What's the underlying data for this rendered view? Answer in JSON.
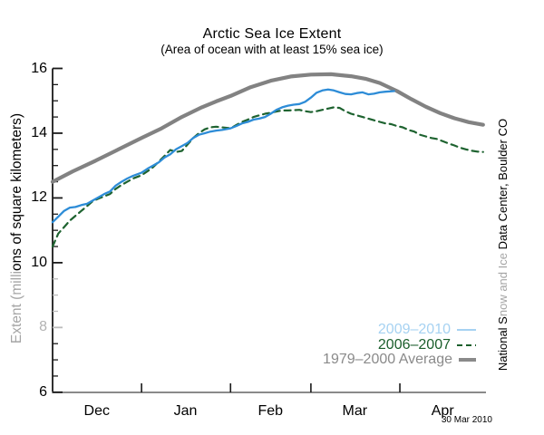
{
  "header": {
    "title": "Arctic Sea Ice Extent",
    "subtitle": "(Area of ocean with at least 15% sea ice)"
  },
  "y_axis_label": {
    "part_faded": "Extent (milli",
    "part_main": "ons of square kilometers)"
  },
  "credit": {
    "part1": "National S",
    "part2": "now and Ice ",
    "part3": "Data Center, Boulder CO"
  },
  "footer": {
    "date_stamp": "30 Mar 2010"
  },
  "legend": {
    "items": [
      {
        "label": "2009–2010",
        "text_color": "#a6d2f2",
        "sample_color": "#a6d2f2",
        "sample_style": "thin"
      },
      {
        "label": "2006–2007",
        "text_color": "#1a5e2b",
        "sample_color": "#1a5e2b",
        "sample_style": "dashed"
      },
      {
        "label": "1979–2000 Average",
        "text_color": "#8a8a8a",
        "sample_color": "#8a8a8a",
        "sample_style": "thick"
      }
    ]
  },
  "chart_data": {
    "type": "line",
    "title": "Arctic Sea Ice Extent",
    "subtitle": "(Area of ocean with at least 15% sea ice)",
    "ylabel": "Extent (millions of square kilometers)",
    "ylim": [
      6,
      16
    ],
    "y_major_ticks": [
      6,
      8,
      10,
      12,
      14,
      16
    ],
    "y_minor_step": 0.5,
    "faded_y_ticks": [
      8,
      8.5,
      9,
      9.5
    ],
    "axis_color": "#1a1a1a",
    "grid": "off",
    "legend_position": "lower right",
    "x_axis": {
      "unit": "days from Dec 1",
      "color": "#8a8a8a",
      "months": [
        {
          "label": "Dec",
          "center_day": 15.4
        },
        {
          "label": "Jan",
          "center_day": 46.3
        },
        {
          "label": "Feb",
          "center_day": 75.9
        },
        {
          "label": "Mar",
          "center_day": 105.3
        },
        {
          "label": "Apr",
          "center_day": 135.9
        }
      ],
      "month_start_days": [
        31,
        62,
        90,
        121
      ]
    },
    "series": [
      {
        "name": "1979-2000 Average",
        "color": "#828282",
        "style": "solid",
        "width": 4.2,
        "points": [
          [
            0,
            12.5
          ],
          [
            7,
            12.82
          ],
          [
            15,
            13.15
          ],
          [
            23,
            13.5
          ],
          [
            31,
            13.85
          ],
          [
            38,
            14.15
          ],
          [
            45,
            14.5
          ],
          [
            52,
            14.8
          ],
          [
            57,
            14.98
          ],
          [
            62,
            15.15
          ],
          [
            69,
            15.42
          ],
          [
            76,
            15.62
          ],
          [
            83,
            15.75
          ],
          [
            90,
            15.81
          ],
          [
            97,
            15.82
          ],
          [
            104,
            15.76
          ],
          [
            109,
            15.68
          ],
          [
            114,
            15.55
          ],
          [
            120,
            15.3
          ],
          [
            125,
            15.05
          ],
          [
            130,
            14.82
          ],
          [
            135,
            14.62
          ],
          [
            140,
            14.46
          ],
          [
            145,
            14.34
          ],
          [
            150,
            14.26
          ]
        ]
      },
      {
        "name": "2006-2007",
        "color": "#1e6330",
        "style": "dashed",
        "width": 2.2,
        "points": [
          [
            0,
            10.5
          ],
          [
            2,
            10.9
          ],
          [
            4,
            11.1
          ],
          [
            6,
            11.3
          ],
          [
            8,
            11.45
          ],
          [
            10,
            11.6
          ],
          [
            12,
            11.75
          ],
          [
            14,
            11.9
          ],
          [
            16,
            11.98
          ],
          [
            18,
            12.05
          ],
          [
            20,
            12.12
          ],
          [
            22,
            12.28
          ],
          [
            24,
            12.4
          ],
          [
            26,
            12.5
          ],
          [
            28,
            12.6
          ],
          [
            31,
            12.7
          ],
          [
            33,
            12.82
          ],
          [
            35,
            12.95
          ],
          [
            37,
            13.12
          ],
          [
            39,
            13.3
          ],
          [
            41,
            13.48
          ],
          [
            43,
            13.42
          ],
          [
            45,
            13.45
          ],
          [
            47,
            13.65
          ],
          [
            49,
            13.85
          ],
          [
            51,
            14.0
          ],
          [
            53,
            14.12
          ],
          [
            55,
            14.18
          ],
          [
            57,
            14.2
          ],
          [
            59,
            14.18
          ],
          [
            62,
            14.15
          ],
          [
            64,
            14.25
          ],
          [
            66,
            14.35
          ],
          [
            68,
            14.42
          ],
          [
            70,
            14.5
          ],
          [
            72,
            14.55
          ],
          [
            74,
            14.6
          ],
          [
            76,
            14.63
          ],
          [
            78,
            14.67
          ],
          [
            80,
            14.7
          ],
          [
            82,
            14.7
          ],
          [
            84,
            14.71
          ],
          [
            86,
            14.72
          ],
          [
            88,
            14.68
          ],
          [
            90,
            14.65
          ],
          [
            92,
            14.68
          ],
          [
            94,
            14.72
          ],
          [
            96,
            14.76
          ],
          [
            98,
            14.8
          ],
          [
            100,
            14.78
          ],
          [
            102,
            14.68
          ],
          [
            104,
            14.6
          ],
          [
            106,
            14.55
          ],
          [
            108,
            14.5
          ],
          [
            110,
            14.45
          ],
          [
            112,
            14.4
          ],
          [
            114,
            14.35
          ],
          [
            116,
            14.3
          ],
          [
            118,
            14.28
          ],
          [
            120,
            14.22
          ],
          [
            122,
            14.18
          ],
          [
            124,
            14.1
          ],
          [
            126,
            14.05
          ],
          [
            128,
            13.95
          ],
          [
            130,
            13.9
          ],
          [
            132,
            13.85
          ],
          [
            134,
            13.82
          ],
          [
            136,
            13.75
          ],
          [
            138,
            13.68
          ],
          [
            140,
            13.62
          ],
          [
            142,
            13.55
          ],
          [
            144,
            13.5
          ],
          [
            146,
            13.46
          ],
          [
            148,
            13.43
          ],
          [
            150,
            13.42
          ]
        ]
      },
      {
        "name": "2009-2010",
        "color": "#2d8cd7",
        "style": "solid",
        "width": 2.3,
        "points": [
          [
            0,
            11.25
          ],
          [
            2,
            11.42
          ],
          [
            4,
            11.6
          ],
          [
            6,
            11.7
          ],
          [
            8,
            11.72
          ],
          [
            10,
            11.78
          ],
          [
            12,
            11.82
          ],
          [
            14,
            11.92
          ],
          [
            16,
            12.02
          ],
          [
            18,
            12.12
          ],
          [
            20,
            12.2
          ],
          [
            22,
            12.38
          ],
          [
            24,
            12.5
          ],
          [
            26,
            12.6
          ],
          [
            28,
            12.68
          ],
          [
            31,
            12.78
          ],
          [
            33,
            12.9
          ],
          [
            35,
            13.0
          ],
          [
            37,
            13.1
          ],
          [
            39,
            13.25
          ],
          [
            41,
            13.35
          ],
          [
            43,
            13.5
          ],
          [
            45,
            13.6
          ],
          [
            47,
            13.7
          ],
          [
            49,
            13.85
          ],
          [
            51,
            13.95
          ],
          [
            53,
            14.0
          ],
          [
            55,
            14.05
          ],
          [
            57,
            14.08
          ],
          [
            59,
            14.1
          ],
          [
            62,
            14.15
          ],
          [
            64,
            14.22
          ],
          [
            66,
            14.3
          ],
          [
            68,
            14.35
          ],
          [
            70,
            14.42
          ],
          [
            72,
            14.45
          ],
          [
            74,
            14.5
          ],
          [
            76,
            14.6
          ],
          [
            78,
            14.72
          ],
          [
            80,
            14.8
          ],
          [
            82,
            14.85
          ],
          [
            84,
            14.88
          ],
          [
            86,
            14.9
          ],
          [
            88,
            14.97
          ],
          [
            90,
            15.1
          ],
          [
            92,
            15.25
          ],
          [
            94,
            15.32
          ],
          [
            96,
            15.35
          ],
          [
            98,
            15.32
          ],
          [
            100,
            15.26
          ],
          [
            102,
            15.21
          ],
          [
            104,
            15.2
          ],
          [
            106,
            15.24
          ],
          [
            108,
            15.26
          ],
          [
            110,
            15.2
          ],
          [
            112,
            15.22
          ],
          [
            114,
            15.26
          ],
          [
            116,
            15.28
          ],
          [
            119,
            15.3
          ]
        ]
      }
    ]
  }
}
